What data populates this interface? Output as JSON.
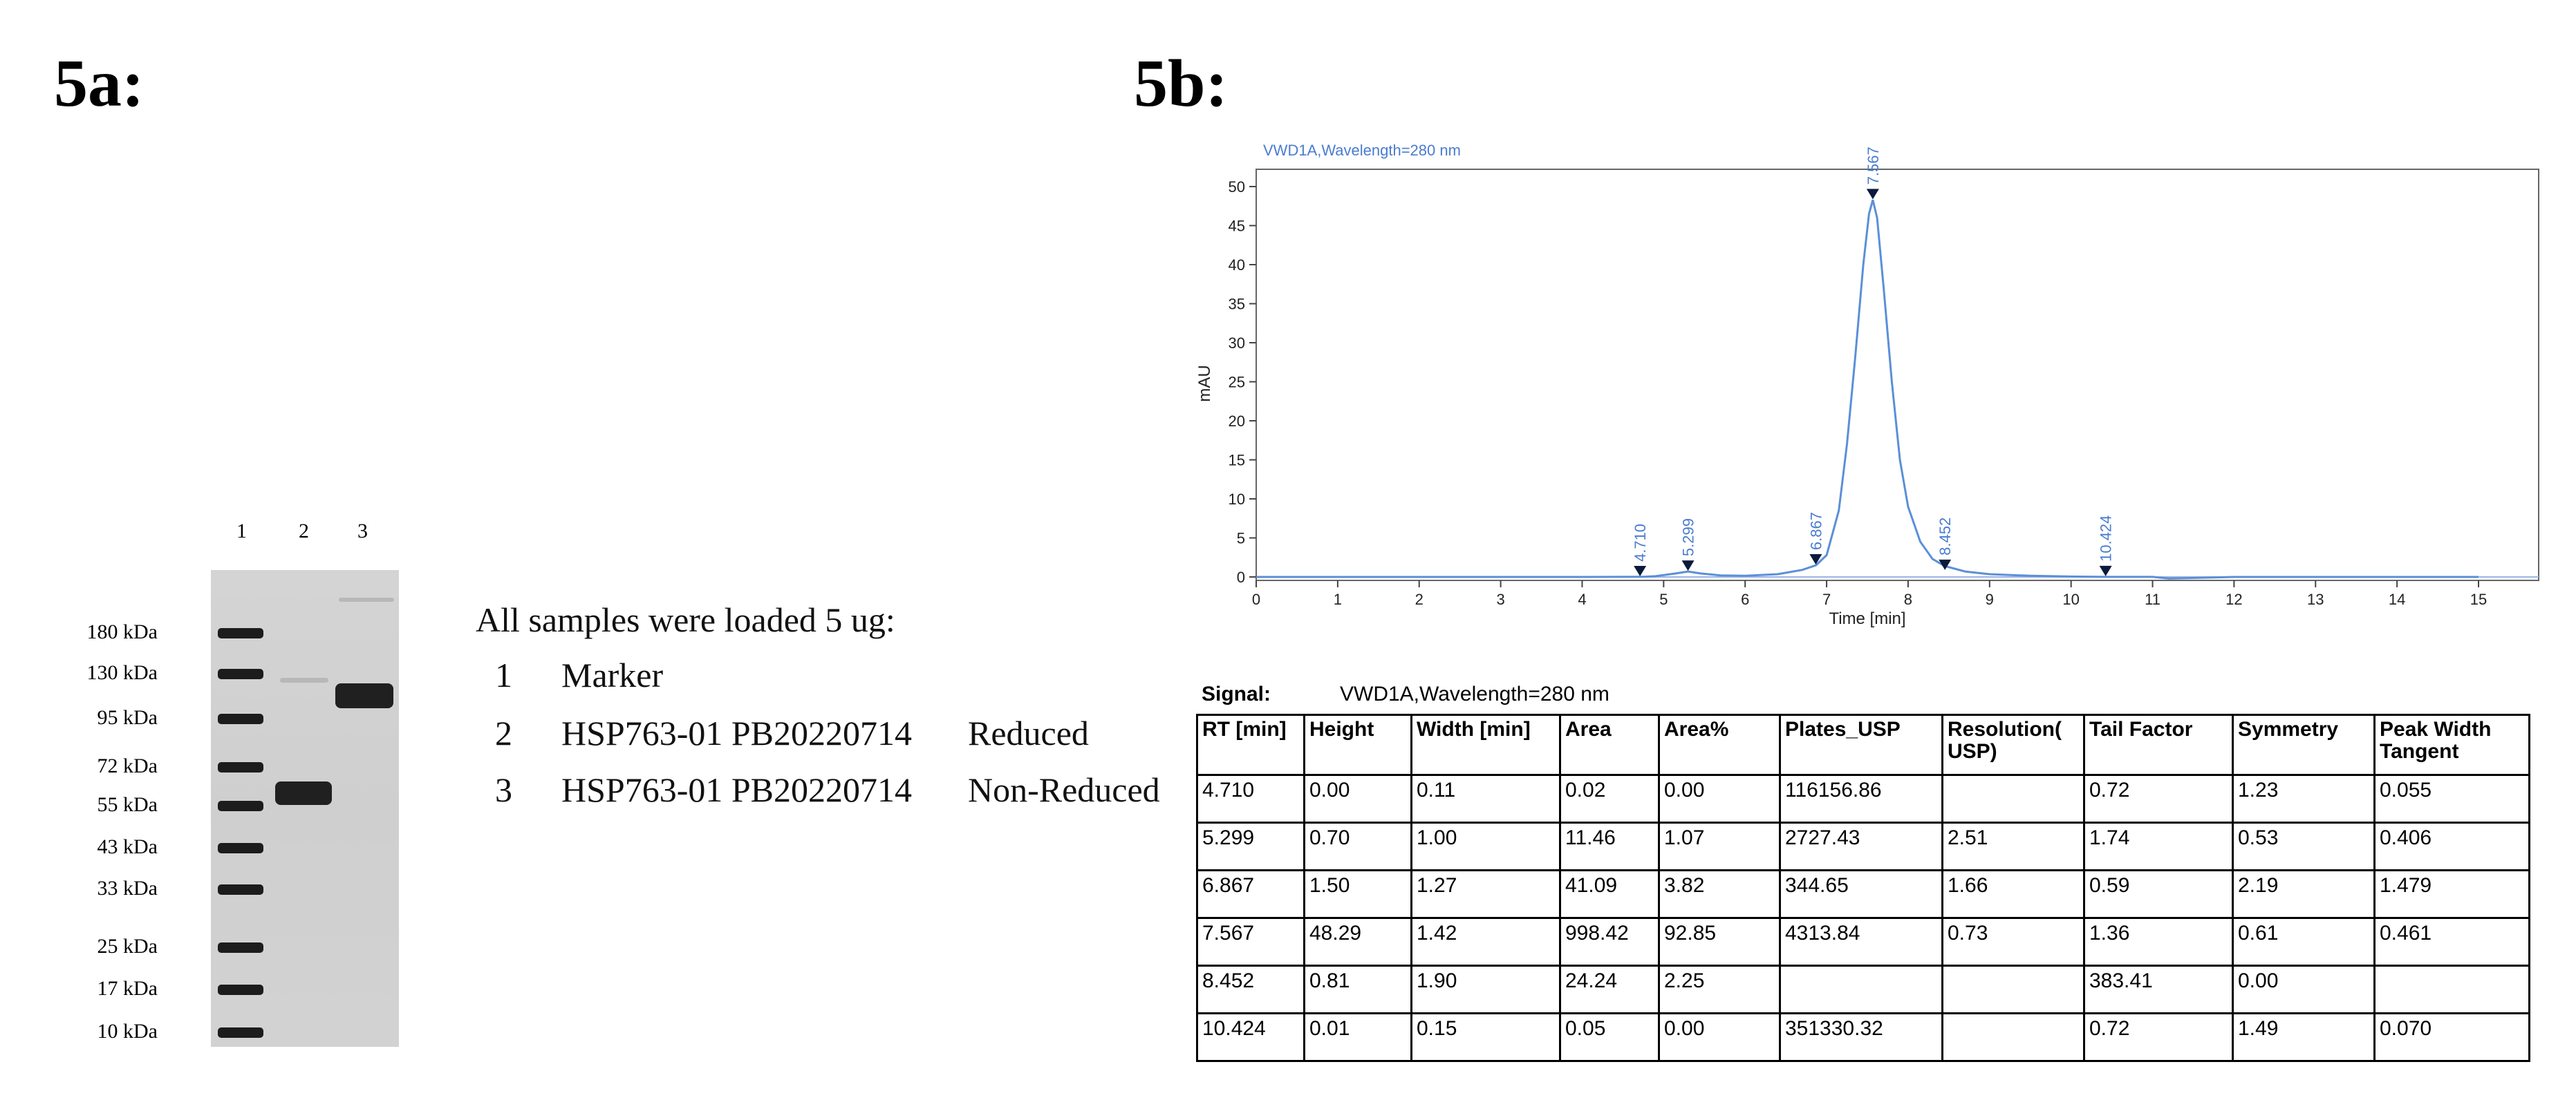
{
  "panel_a": {
    "label": "5a:",
    "lane_numbers": [
      "1",
      "2",
      "3"
    ],
    "marker_labels": [
      "180 kDa",
      "130 kDa",
      "95 kDa",
      "72 kDa",
      "55 kDa",
      "43 kDa",
      "33 kDa",
      "25 kDa",
      "17 kDa",
      "10 kDa"
    ],
    "legend_title": "All samples were loaded 5 ug:",
    "legend_rows": [
      {
        "num": "1",
        "sample": "Marker",
        "condition": ""
      },
      {
        "num": "2",
        "sample": "HSP763-01 PB20220714",
        "condition": "Reduced"
      },
      {
        "num": "3",
        "sample": "HSP763-01 PB20220714",
        "condition": "Non-Reduced"
      }
    ]
  },
  "panel_b": {
    "label": "5b:",
    "chart_data": {
      "type": "line",
      "title": "VWD1A,Wavelength=280 nm",
      "xlabel": "Time [min]",
      "ylabel": "mAU",
      "xlim": [
        0,
        15
      ],
      "ylim": [
        0,
        50
      ],
      "xticks": [
        0,
        1,
        2,
        3,
        4,
        5,
        6,
        7,
        8,
        9,
        10,
        11,
        12,
        13,
        14,
        15
      ],
      "yticks": [
        0,
        5,
        10,
        15,
        20,
        25,
        30,
        35,
        40,
        45,
        50
      ],
      "grid": false,
      "peaks": [
        {
          "label": "4.710",
          "x": 4.71,
          "y": 0.0
        },
        {
          "label": "5.299",
          "x": 5.299,
          "y": 0.7
        },
        {
          "label": "6.867",
          "x": 6.867,
          "y": 1.5
        },
        {
          "label": "7.567",
          "x": 7.567,
          "y": 48.29
        },
        {
          "label": "8.452",
          "x": 8.452,
          "y": 0.81
        },
        {
          "label": "10.424",
          "x": 10.424,
          "y": 0.01
        }
      ],
      "series": [
        {
          "x": [
            0,
            4.0,
            4.7,
            4.75,
            4.9,
            5.15,
            5.3,
            5.45,
            5.7,
            6.0,
            6.4,
            6.7,
            6.87,
            7.0,
            7.15,
            7.25,
            7.35,
            7.45,
            7.52,
            7.567,
            7.62,
            7.7,
            7.8,
            7.9,
            8.0,
            8.15,
            8.3,
            8.45,
            8.7,
            9.0,
            9.5,
            10.0,
            10.42,
            11.0,
            11.2,
            12,
            13,
            14,
            15
          ],
          "y": [
            0,
            0,
            0.02,
            0.02,
            0.1,
            0.45,
            0.7,
            0.45,
            0.2,
            0.15,
            0.35,
            0.9,
            1.5,
            2.8,
            8.5,
            17,
            28,
            40,
            46.5,
            48.29,
            46,
            37,
            25,
            15,
            9,
            4.5,
            2.3,
            1.4,
            0.7,
            0.35,
            0.15,
            0.05,
            0.01,
            0.01,
            -0.2,
            0,
            0,
            0,
            0
          ]
        }
      ],
      "colors": {
        "trace": "#5b8fd8",
        "marker": "#0a1a3a"
      }
    },
    "signal_label": "Signal:",
    "signal_value": "VWD1A,Wavelength=280 nm",
    "table": {
      "headers": [
        "RT [min]",
        "Height",
        "Width [min]",
        "Area",
        "Area%",
        "Plates_USP",
        "Resolution( USP)",
        "Tail Factor",
        "Symmetry",
        "Peak Width Tangent"
      ],
      "rows": [
        [
          "4.710",
          "0.00",
          "0.11",
          "0.02",
          "0.00",
          "116156.86",
          "",
          "0.72",
          "1.23",
          "0.055"
        ],
        [
          "5.299",
          "0.70",
          "1.00",
          "11.46",
          "1.07",
          "2727.43",
          "2.51",
          "1.74",
          "0.53",
          "0.406"
        ],
        [
          "6.867",
          "1.50",
          "1.27",
          "41.09",
          "3.82",
          "344.65",
          "1.66",
          "0.59",
          "2.19",
          "1.479"
        ],
        [
          "7.567",
          "48.29",
          "1.42",
          "998.42",
          "92.85",
          "4313.84",
          "0.73",
          "1.36",
          "0.61",
          "0.461"
        ],
        [
          "8.452",
          "0.81",
          "1.90",
          "24.24",
          "2.25",
          "",
          "",
          "383.41",
          "0.00",
          ""
        ],
        [
          "10.424",
          "0.01",
          "0.15",
          "0.05",
          "0.00",
          "351330.32",
          "",
          "0.72",
          "1.49",
          "0.070"
        ]
      ]
    }
  }
}
